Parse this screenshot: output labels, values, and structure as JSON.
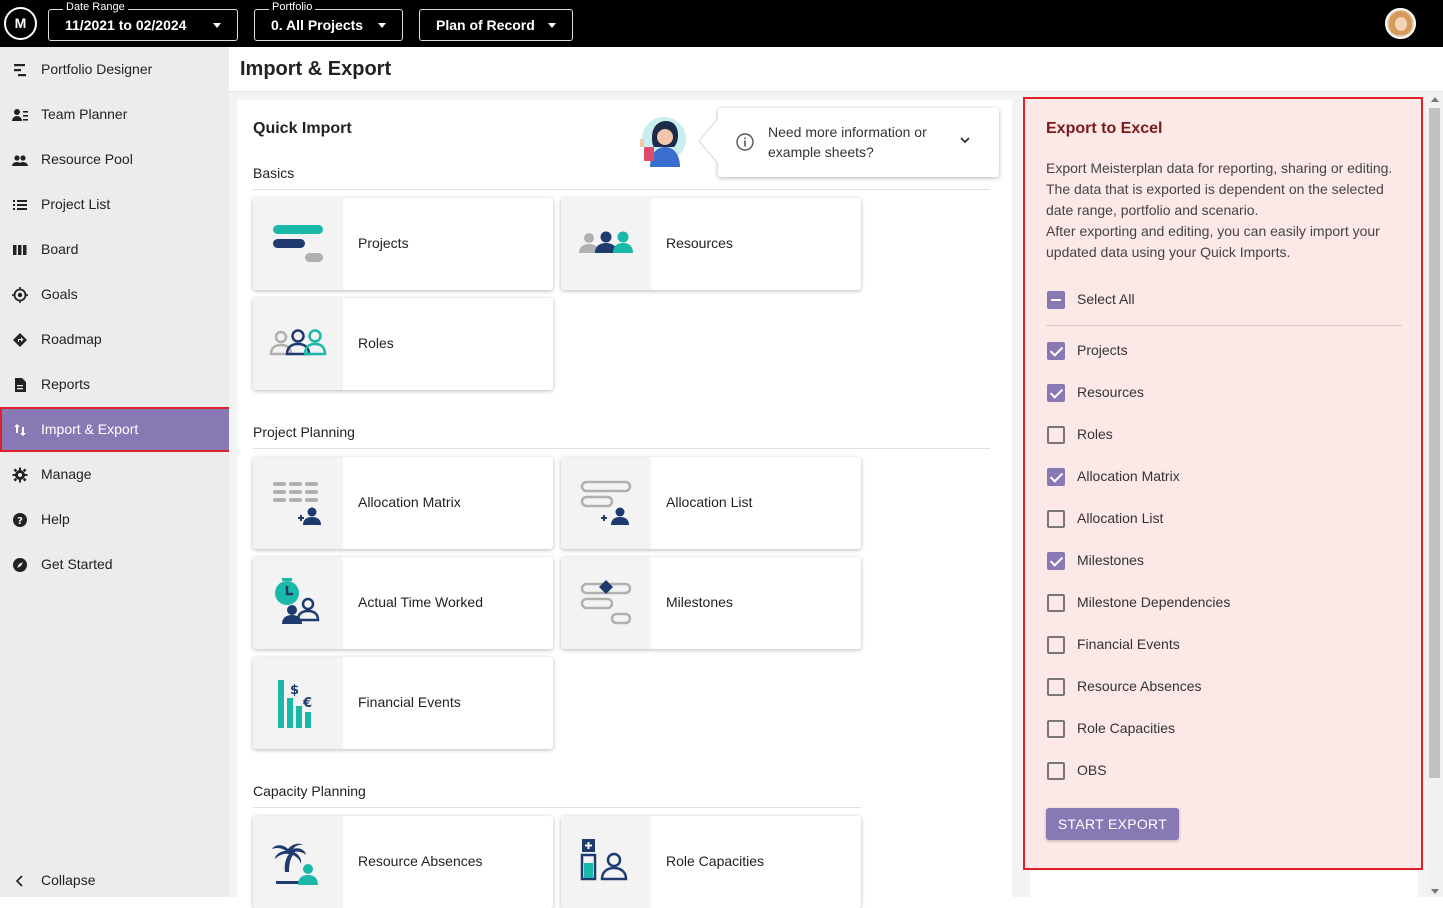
{
  "topbar": {
    "logo_text": "M",
    "date_range": {
      "label": "Date Range",
      "value": "11/2021 to 02/2024"
    },
    "portfolio": {
      "label": "Portfolio",
      "value": "0. All Projects"
    },
    "scenario": {
      "value": "Plan of Record"
    }
  },
  "sidebar": {
    "items": [
      {
        "label": "Portfolio Designer",
        "icon": "portfolio-designer-icon"
      },
      {
        "label": "Team Planner",
        "icon": "team-planner-icon"
      },
      {
        "label": "Resource Pool",
        "icon": "resource-pool-icon"
      },
      {
        "label": "Project List",
        "icon": "list-icon"
      },
      {
        "label": "Board",
        "icon": "board-icon"
      },
      {
        "label": "Goals",
        "icon": "goals-icon"
      },
      {
        "label": "Roadmap",
        "icon": "roadmap-icon"
      },
      {
        "label": "Reports",
        "icon": "reports-icon"
      },
      {
        "label": "Import & Export",
        "icon": "import-export-icon",
        "active": true
      },
      {
        "label": "Manage",
        "icon": "gear-icon"
      },
      {
        "label": "Help",
        "icon": "help-icon"
      },
      {
        "label": "Get Started",
        "icon": "compass-icon"
      }
    ],
    "collapse_label": "Collapse"
  },
  "page": {
    "title": "Import & Export"
  },
  "quick_import": {
    "title": "Quick Import",
    "info_text": "Need more information or example sheets?",
    "groups": [
      {
        "title": "Basics",
        "cards": [
          "Projects",
          "Resources",
          "Roles"
        ]
      },
      {
        "title": "Project Planning",
        "cards": [
          "Allocation Matrix",
          "Allocation List",
          "Actual Time Worked",
          "Milestones",
          "Financial Events"
        ]
      },
      {
        "title": "Capacity Planning",
        "cards": [
          "Resource Absences",
          "Role Capacities"
        ]
      }
    ]
  },
  "export": {
    "title": "Export to Excel",
    "description_lines": [
      "Export Meisterplan data for reporting, sharing or editing.",
      "The data that is exported is dependent on the selected",
      "date range, portfolio and scenario.",
      "After exporting and editing, you can easily import your",
      "updated data using your Quick Imports."
    ],
    "select_all_label": "Select All",
    "options": [
      {
        "label": "Projects",
        "checked": true
      },
      {
        "label": "Resources",
        "checked": true
      },
      {
        "label": "Roles",
        "checked": false
      },
      {
        "label": "Allocation Matrix",
        "checked": true
      },
      {
        "label": "Allocation List",
        "checked": false
      },
      {
        "label": "Milestones",
        "checked": true
      },
      {
        "label": "Milestone Dependencies",
        "checked": false
      },
      {
        "label": "Financial Events",
        "checked": false
      },
      {
        "label": "Resource Absences",
        "checked": false
      },
      {
        "label": "Role Capacities",
        "checked": false
      },
      {
        "label": "OBS",
        "checked": false
      }
    ],
    "button_label": "START EXPORT"
  },
  "colors": {
    "accent": "#8878b4",
    "teal": "#1ab8a8",
    "navy": "#1e3a6e",
    "highlight": "#e0202a"
  }
}
